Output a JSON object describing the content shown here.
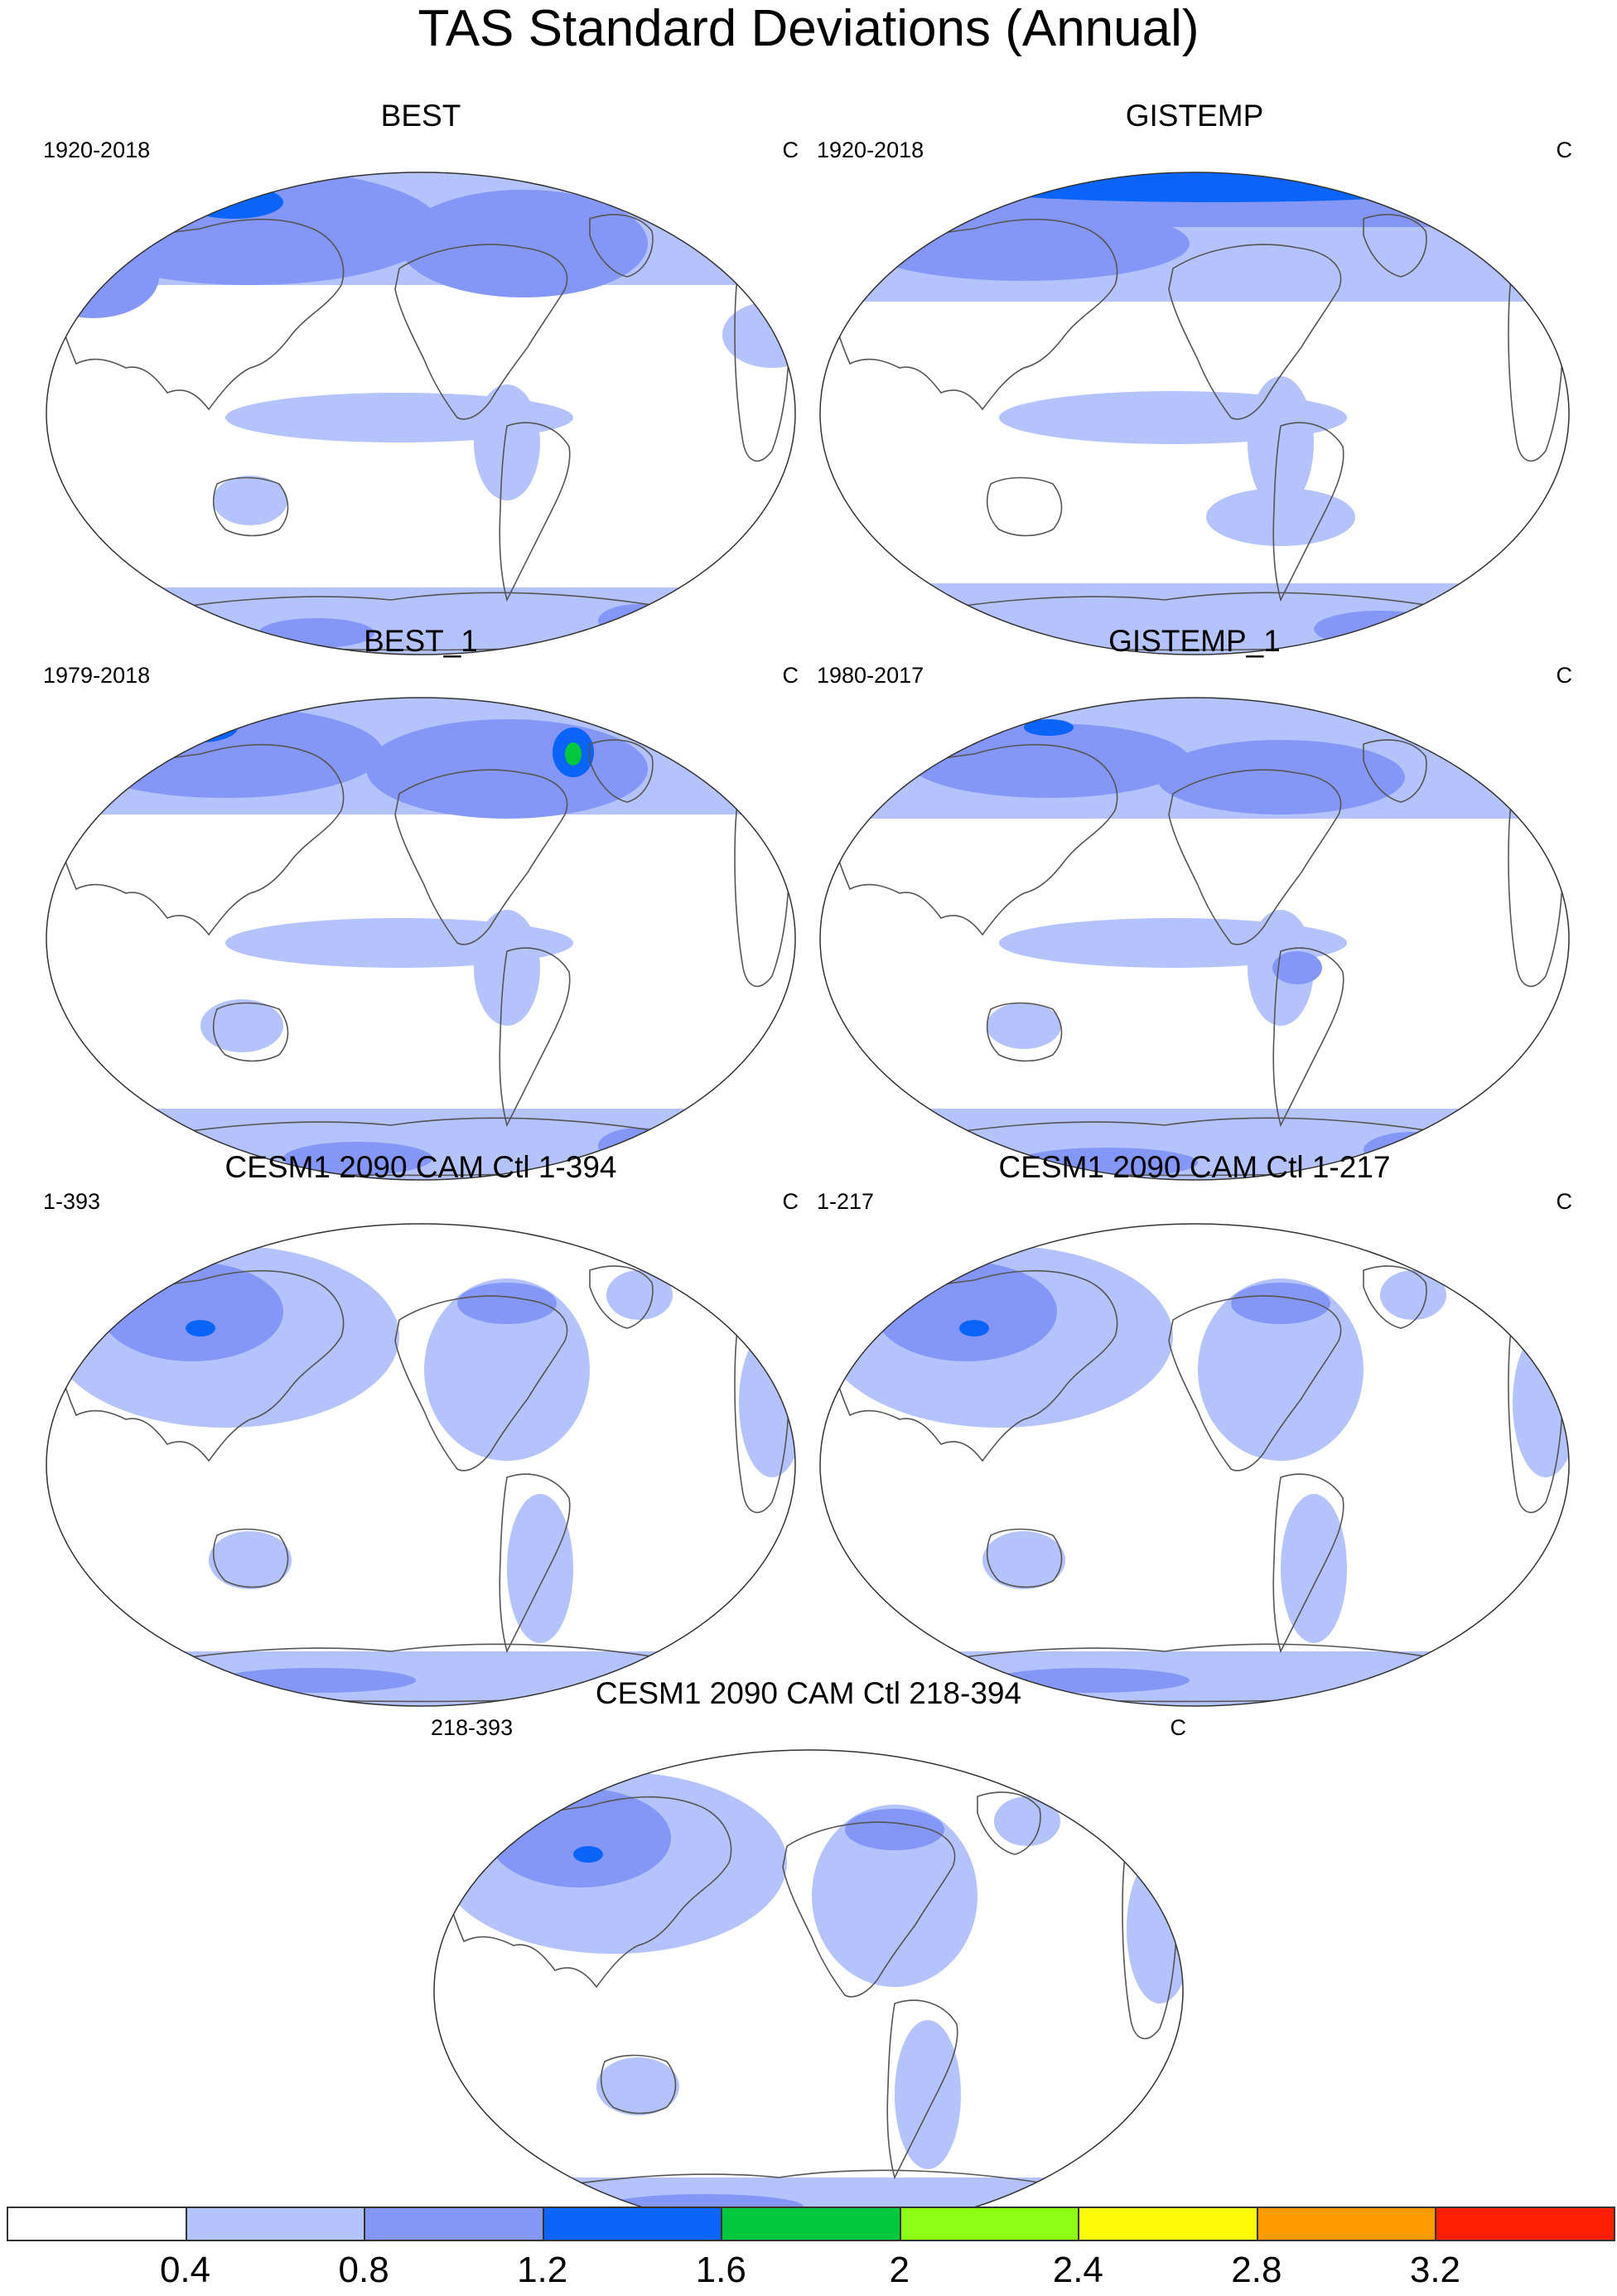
{
  "figure": {
    "title": "TAS Standard Deviations (Annual)"
  },
  "panels": [
    {
      "title": "BEST",
      "period": "1920-2018",
      "units": "C",
      "pattern": "obs_long"
    },
    {
      "title": "GISTEMP",
      "period": "1920-2018",
      "units": "C",
      "pattern": "gis_long"
    },
    {
      "title": "BEST_1",
      "period": "1979-2018",
      "units": "C",
      "pattern": "obs_short"
    },
    {
      "title": "GISTEMP_1",
      "period": "1980-2017",
      "units": "C",
      "pattern": "gis_short"
    },
    {
      "title": "CESM1 2090 CAM Ctl 1-394",
      "period": "1-393",
      "units": "C",
      "pattern": "model"
    },
    {
      "title": "CESM1 2090 CAM Ctl 1-217",
      "period": "1-217",
      "units": "C",
      "pattern": "model"
    },
    {
      "title": "CESM1 2090 CAM Ctl 218-394",
      "period": "218-393",
      "units": "C",
      "pattern": "model"
    }
  ],
  "colorbar": {
    "levels": [
      "0.4",
      "0.8",
      "1.2",
      "1.6",
      "2",
      "2.4",
      "2.8",
      "3.2"
    ],
    "colors": [
      "#ffffff",
      "#b4c3fc",
      "#8497f7",
      "#0a64fa",
      "#00c83c",
      "#8cff14",
      "#fffa0a",
      "#ff9b00",
      "#ff1e00"
    ]
  }
}
